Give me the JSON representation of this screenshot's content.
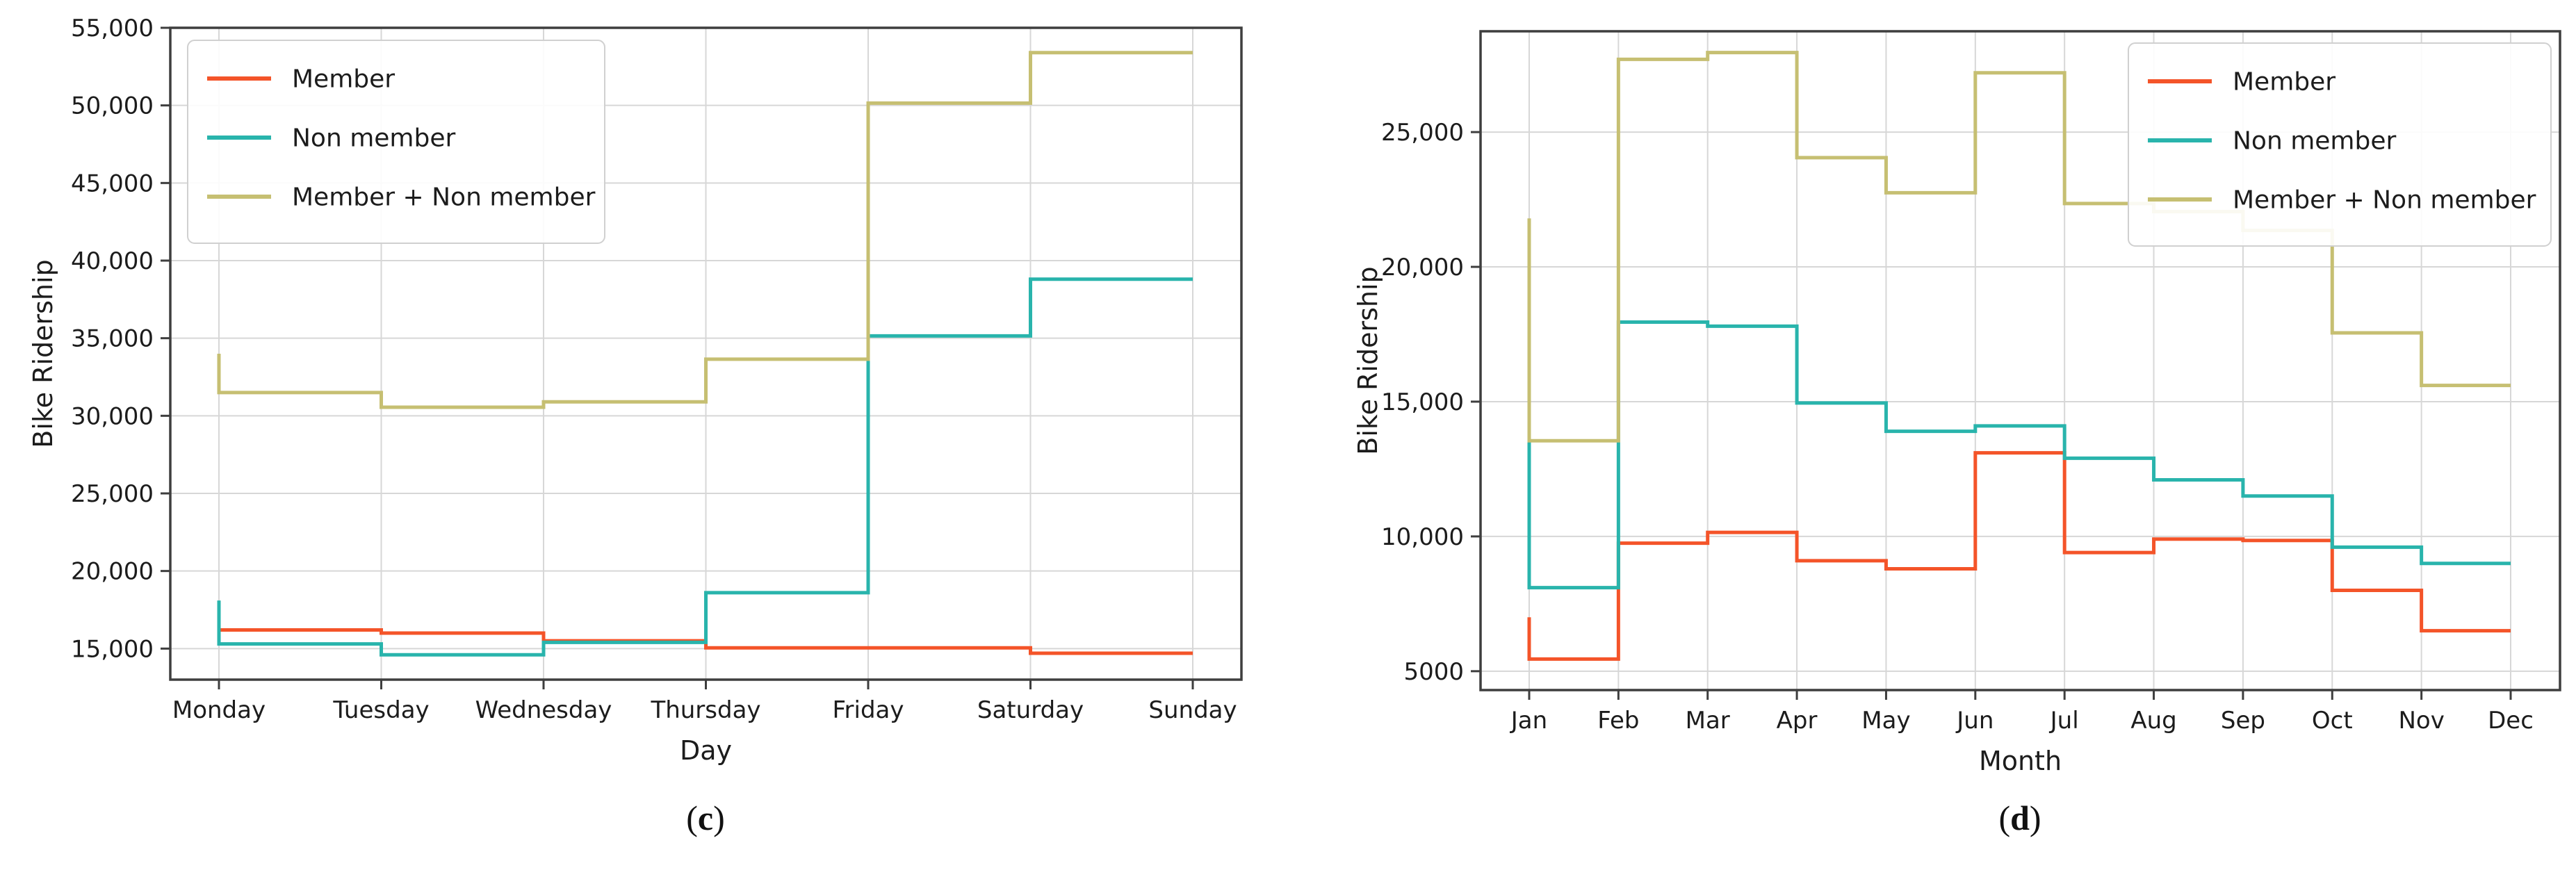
{
  "figure": {
    "background": "#ffffff",
    "text_color": "#1c1c1c",
    "grid_color": "#d7d7d7",
    "spine_color": "#3e3e3e",
    "captions": [
      {
        "open": "(",
        "letter": "c",
        "close": ")"
      },
      {
        "open": "(",
        "letter": "d",
        "close": ")"
      }
    ]
  },
  "chart_data": [
    {
      "type": "line",
      "step_style": "steps-post",
      "title": "",
      "xlabel": "Day",
      "ylabel": "Bike Ridership",
      "categories": [
        "Monday",
        "Tuesday",
        "Wednesday",
        "Thursday",
        "Friday",
        "Saturday",
        "Sunday"
      ],
      "ylim": [
        13000,
        55000
      ],
      "grid": true,
      "legend_position": "upper left",
      "yticks": [
        {
          "value": 15000,
          "label": "15,000"
        },
        {
          "value": 20000,
          "label": "20,000"
        },
        {
          "value": 25000,
          "label": "25,000"
        },
        {
          "value": 30000,
          "label": "30,000"
        },
        {
          "value": 35000,
          "label": "35,000"
        },
        {
          "value": 40000,
          "label": "40,000"
        },
        {
          "value": 45000,
          "label": "45,000"
        },
        {
          "value": 50000,
          "label": "50,000"
        },
        {
          "value": 55000,
          "label": "55,000"
        }
      ],
      "series": [
        {
          "name": "Member",
          "color": "#f45429",
          "edge_start": 16200,
          "values": [
            16200,
            16000,
            15500,
            15050,
            15050,
            14700,
            14700
          ]
        },
        {
          "name": "Non member",
          "color": "#29b4ac",
          "edge_start": 18100,
          "values": [
            15300,
            14600,
            15400,
            18600,
            35150,
            38800,
            38800
          ]
        },
        {
          "name": "Member + Non member",
          "color": "#c6bf72",
          "edge_start": 34000,
          "values": [
            31500,
            30550,
            30900,
            33650,
            50150,
            53400,
            53400
          ]
        }
      ]
    },
    {
      "type": "line",
      "step_style": "steps-post",
      "title": "",
      "xlabel": "Month",
      "ylabel": "Bike Ridership",
      "categories": [
        "Jan",
        "Feb",
        "Mar",
        "Apr",
        "May",
        "Jun",
        "Jul",
        "Aug",
        "Sep",
        "Oct",
        "Nov",
        "Dec"
      ],
      "ylim": [
        4300,
        28740
      ],
      "grid": true,
      "legend_position": "upper right",
      "yticks": [
        {
          "value": 5000,
          "label": "5000"
        },
        {
          "value": 10000,
          "label": "10,000"
        },
        {
          "value": 15000,
          "label": "15,000"
        },
        {
          "value": 20000,
          "label": "20,000"
        },
        {
          "value": 25000,
          "label": "25,000"
        }
      ],
      "series": [
        {
          "name": "Member",
          "color": "#f45429",
          "edge_start": 7000,
          "values": [
            5450,
            9750,
            10150,
            9100,
            8800,
            13100,
            9400,
            9900,
            9850,
            8000,
            6500,
            6500
          ]
        },
        {
          "name": "Non member",
          "color": "#29b4ac",
          "edge_start": 13600,
          "values": [
            8100,
            17950,
            17800,
            14950,
            13900,
            14100,
            12900,
            12100,
            11500,
            9600,
            9000,
            9000
          ]
        },
        {
          "name": "Member + Non member",
          "color": "#c6bf72",
          "edge_start": 21800,
          "values": [
            13550,
            27700,
            27950,
            24050,
            22750,
            27200,
            22350,
            22050,
            21350,
            17550,
            15600,
            15600
          ]
        }
      ]
    }
  ]
}
